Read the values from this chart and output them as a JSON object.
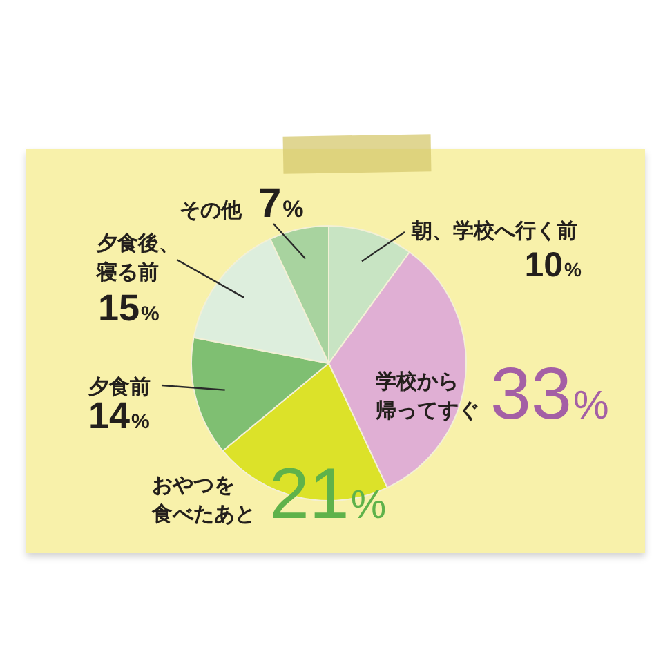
{
  "chart_data": {
    "type": "pie",
    "categories": [
      "朝、学校へ行く前",
      "学校から帰ってすぐ",
      "おやつを食べたあと",
      "夕食前",
      "夕食後、寝る前",
      "その他"
    ],
    "values": [
      10,
      33,
      21,
      14,
      15,
      7
    ],
    "value_labels": [
      "10%",
      "33%",
      "21%",
      "14%",
      "15%",
      "7%"
    ],
    "colors": [
      "#c8e4c3",
      "#e0afd4",
      "#dce229",
      "#7fbf72",
      "#ddeedd",
      "#a8d39f"
    ]
  }
}
